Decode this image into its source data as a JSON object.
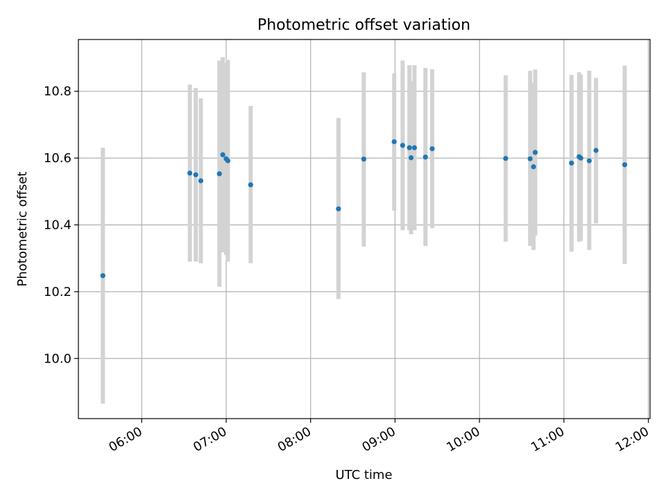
{
  "chart_data": {
    "type": "scatter",
    "title": "Photometric offset variation",
    "xlabel": "UTC time",
    "ylabel": "Photometric offset",
    "x_unit": "hours UTC",
    "xlim": [
      5.25,
      12.02
    ],
    "ylim": [
      9.82,
      10.955
    ],
    "x_ticks": [
      {
        "value": 6,
        "label": "06:00"
      },
      {
        "value": 7,
        "label": "07:00"
      },
      {
        "value": 8,
        "label": "08:00"
      },
      {
        "value": 9,
        "label": "09:00"
      },
      {
        "value": 10,
        "label": "10:00"
      },
      {
        "value": 11,
        "label": "11:00"
      },
      {
        "value": 12,
        "label": "12:00"
      }
    ],
    "y_ticks": [
      {
        "value": 10.0,
        "label": "10.0"
      },
      {
        "value": 10.2,
        "label": "10.2"
      },
      {
        "value": 10.4,
        "label": "10.4"
      },
      {
        "value": 10.6,
        "label": "10.6"
      },
      {
        "value": 10.8,
        "label": "10.8"
      }
    ],
    "grid": true,
    "colors": {
      "point": "#1f77b4",
      "errorbar": "#d3d3d3",
      "grid": "#b0b0b0"
    },
    "points": [
      {
        "x": 5.54,
        "y": 10.248,
        "ylow": 9.865,
        "yhigh": 10.631
      },
      {
        "x": 6.57,
        "y": 10.555,
        "ylow": 10.29,
        "yhigh": 10.82
      },
      {
        "x": 6.64,
        "y": 10.55,
        "ylow": 10.29,
        "yhigh": 10.81
      },
      {
        "x": 6.7,
        "y": 10.532,
        "ylow": 10.285,
        "yhigh": 10.779
      },
      {
        "x": 6.92,
        "y": 10.553,
        "ylow": 10.215,
        "yhigh": 10.892
      },
      {
        "x": 6.96,
        "y": 10.61,
        "ylow": 10.318,
        "yhigh": 10.902
      },
      {
        "x": 7.0,
        "y": 10.598,
        "ylow": 10.31,
        "yhigh": 10.886
      },
      {
        "x": 7.02,
        "y": 10.592,
        "ylow": 10.29,
        "yhigh": 10.894
      },
      {
        "x": 7.29,
        "y": 10.52,
        "ylow": 10.285,
        "yhigh": 10.756
      },
      {
        "x": 8.33,
        "y": 10.448,
        "ylow": 10.178,
        "yhigh": 10.72
      },
      {
        "x": 8.63,
        "y": 10.597,
        "ylow": 10.335,
        "yhigh": 10.857
      },
      {
        "x": 8.99,
        "y": 10.649,
        "ylow": 10.443,
        "yhigh": 10.853
      },
      {
        "x": 9.09,
        "y": 10.638,
        "ylow": 10.384,
        "yhigh": 10.892
      },
      {
        "x": 9.17,
        "y": 10.631,
        "ylow": 10.384,
        "yhigh": 10.878
      },
      {
        "x": 9.19,
        "y": 10.601,
        "ylow": 10.372,
        "yhigh": 10.83
      },
      {
        "x": 9.23,
        "y": 10.631,
        "ylow": 10.384,
        "yhigh": 10.878
      },
      {
        "x": 9.36,
        "y": 10.603,
        "ylow": 10.337,
        "yhigh": 10.87
      },
      {
        "x": 9.44,
        "y": 10.628,
        "ylow": 10.39,
        "yhigh": 10.866
      },
      {
        "x": 10.31,
        "y": 10.599,
        "ylow": 10.35,
        "yhigh": 10.848
      },
      {
        "x": 10.6,
        "y": 10.598,
        "ylow": 10.337,
        "yhigh": 10.861
      },
      {
        "x": 10.64,
        "y": 10.574,
        "ylow": 10.325,
        "yhigh": 10.825
      },
      {
        "x": 10.66,
        "y": 10.617,
        "ylow": 10.368,
        "yhigh": 10.865
      },
      {
        "x": 11.09,
        "y": 10.585,
        "ylow": 10.32,
        "yhigh": 10.849
      },
      {
        "x": 11.18,
        "y": 10.604,
        "ylow": 10.35,
        "yhigh": 10.857
      },
      {
        "x": 11.2,
        "y": 10.6,
        "ylow": 10.352,
        "yhigh": 10.85
      },
      {
        "x": 11.3,
        "y": 10.592,
        "ylow": 10.325,
        "yhigh": 10.862
      },
      {
        "x": 11.38,
        "y": 10.623,
        "ylow": 10.404,
        "yhigh": 10.84
      },
      {
        "x": 11.72,
        "y": 10.58,
        "ylow": 10.283,
        "yhigh": 10.877
      }
    ]
  }
}
